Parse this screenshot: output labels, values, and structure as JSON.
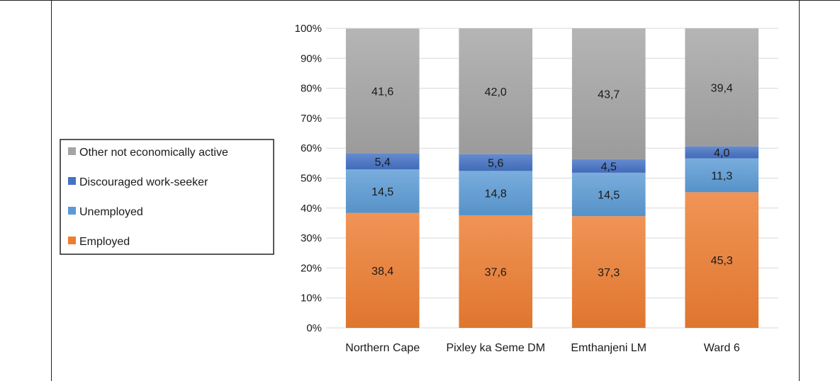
{
  "chart_data": {
    "type": "bar",
    "stacked": true,
    "percent_stacked": true,
    "categories": [
      "Northern Cape",
      "Pixley ka Seme DM",
      "Emthanjeni LM",
      "Ward 6"
    ],
    "series": [
      {
        "name": "Employed",
        "values": [
          38.4,
          37.6,
          37.3,
          45.3
        ],
        "color": "#ed7d31"
      },
      {
        "name": "Unemployed",
        "values": [
          14.5,
          14.8,
          14.5,
          11.3
        ],
        "color": "#5b9bd5"
      },
      {
        "name": "Discouraged work-seeker",
        "values": [
          5.4,
          5.6,
          4.5,
          4.0
        ],
        "color": "#4472c4"
      },
      {
        "name": "Other not economically active",
        "values": [
          41.6,
          42.0,
          43.7,
          39.4
        ],
        "color": "#a5a5a5"
      }
    ],
    "data_labels": [
      [
        "38,4",
        "37,6",
        "37,3",
        "45,3"
      ],
      [
        "14,5",
        "14,8",
        "14,5",
        "11,3"
      ],
      [
        "5,4",
        "5,6",
        "4,5",
        "4,0"
      ],
      [
        "41,6",
        "42,0",
        "43,7",
        "39,4"
      ]
    ],
    "y_ticks": [
      "0%",
      "10%",
      "20%",
      "30%",
      "40%",
      "50%",
      "60%",
      "70%",
      "80%",
      "90%",
      "100%"
    ],
    "ylim": [
      0,
      100
    ],
    "title": "",
    "xlabel": "",
    "ylabel": "",
    "grid": true,
    "legend_position": "left"
  }
}
